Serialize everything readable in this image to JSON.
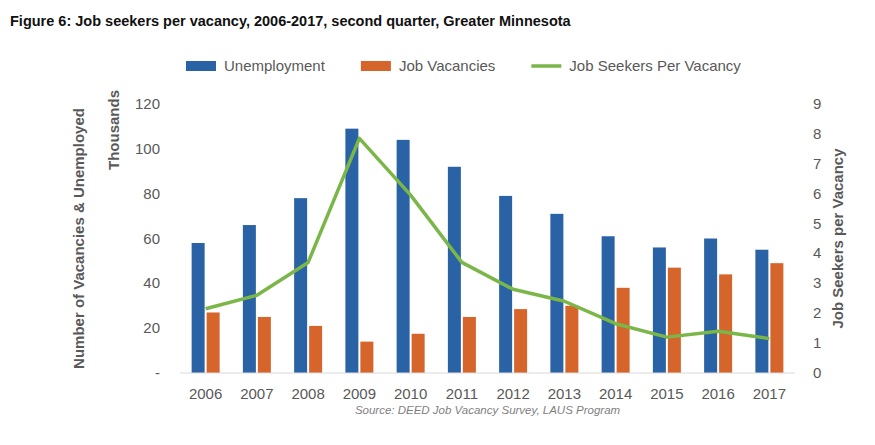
{
  "chart_data": {
    "type": "bar",
    "title": "Figure 6: Job seekers per vacancy, 2006-2017, second quarter, Greater Minnesota",
    "ylabel": [
      "Number of Vacancies & Unemployed",
      "Thousands"
    ],
    "y2label": "Job Seekers per Vacancy",
    "source": "Source: DEED Job Vacancy Survey, LAUS Program",
    "categories": [
      "2006",
      "2007",
      "2008",
      "2009",
      "2010",
      "2011",
      "2012",
      "2013",
      "2014",
      "2015",
      "2016",
      "2017"
    ],
    "series": [
      {
        "name": "Unemployment",
        "type": "bar",
        "color": "#2a62a6",
        "values": [
          58,
          66,
          78,
          109,
          104,
          92,
          79,
          71,
          61,
          56,
          60,
          55
        ]
      },
      {
        "name": "Job Vacancies",
        "type": "bar",
        "color": "#d5652b",
        "values": [
          27,
          25,
          21,
          14,
          17.5,
          25,
          28.5,
          30,
          38,
          47,
          44,
          49
        ]
      },
      {
        "name": "Job Seekers Per Vacancy",
        "type": "line",
        "color": "#7ab648",
        "axis": "y2",
        "values": [
          2.15,
          2.6,
          3.7,
          7.85,
          5.95,
          3.7,
          2.8,
          2.4,
          1.65,
          1.2,
          1.4,
          1.15
        ]
      }
    ],
    "ylim": [
      0,
      120
    ],
    "yticks": [
      {
        "value": 0,
        "label": "-"
      },
      20,
      40,
      60,
      80,
      100,
      120
    ],
    "y2lim": [
      0,
      9
    ],
    "y2ticks": [
      0,
      1,
      2,
      3,
      4,
      5,
      6,
      7,
      8,
      9
    ],
    "grid": false,
    "legend": "top"
  }
}
